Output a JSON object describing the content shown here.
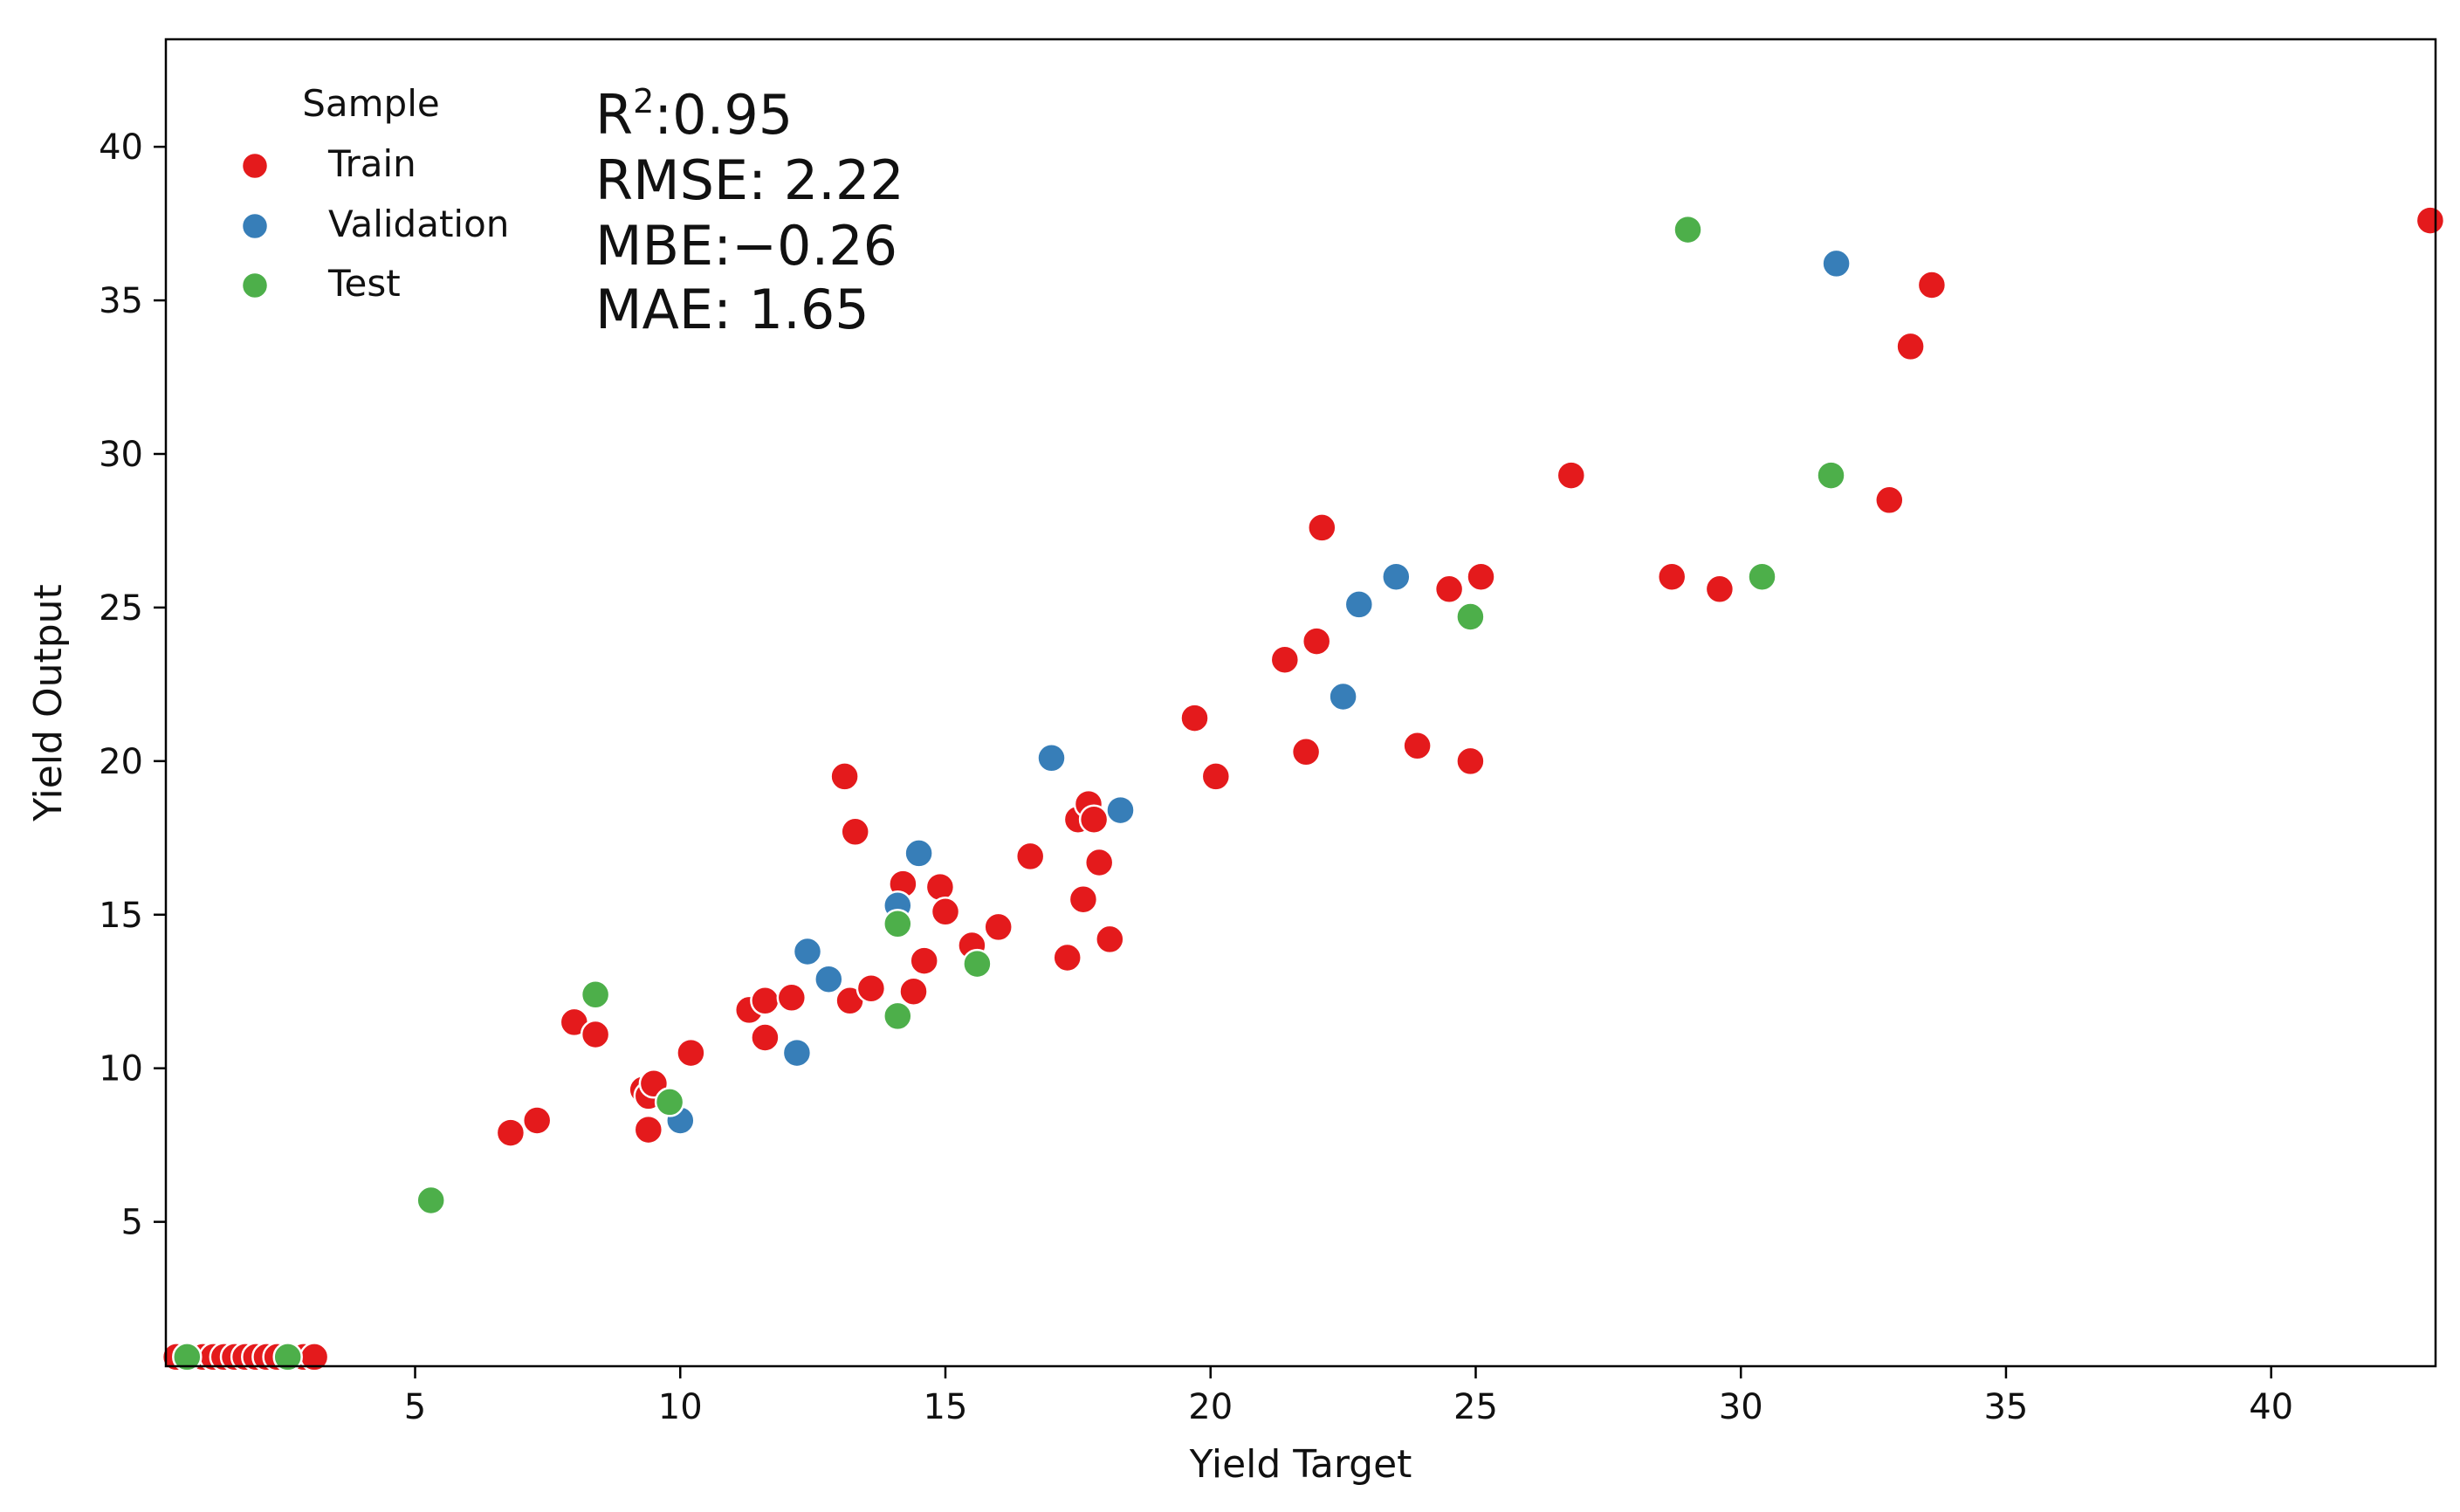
{
  "chart_data": {
    "type": "scatter",
    "xlabel": "Yield Target",
    "ylabel": "Yield Output",
    "xlim": [
      0.3,
      43.1
    ],
    "ylim": [
      0.3,
      43.5
    ],
    "xticks": [
      5,
      10,
      15,
      20,
      25,
      30,
      35,
      40
    ],
    "yticks": [
      5,
      10,
      15,
      20,
      25,
      30,
      35,
      40
    ],
    "grid": false,
    "legend": {
      "title": "Sample",
      "placement": "top-left",
      "entries": [
        "Train",
        "Validation",
        "Test"
      ]
    },
    "annotation_lines": [
      {
        "prefix": "R",
        "sup": "2",
        "suffix": ":0.95"
      },
      {
        "prefix": "RMSE: 2.22",
        "sup": "",
        "suffix": ""
      },
      {
        "prefix": "MBE:−0.26",
        "sup": "",
        "suffix": ""
      },
      {
        "prefix": "MAE: 1.65",
        "sup": "",
        "suffix": ""
      }
    ],
    "series": [
      {
        "name": "Train",
        "color": "#e41a1c",
        "points": [
          [
            0.5,
            0.6
          ],
          [
            0.8,
            0.6
          ],
          [
            1.0,
            0.6
          ],
          [
            1.2,
            0.6
          ],
          [
            1.4,
            0.6
          ],
          [
            1.6,
            0.6
          ],
          [
            1.8,
            0.6
          ],
          [
            2.0,
            0.6
          ],
          [
            2.2,
            0.6
          ],
          [
            2.4,
            0.6
          ],
          [
            2.9,
            0.6
          ],
          [
            3.1,
            0.6
          ],
          [
            6.8,
            7.9
          ],
          [
            7.3,
            8.3
          ],
          [
            8.0,
            11.5
          ],
          [
            8.4,
            11.1
          ],
          [
            9.3,
            9.3
          ],
          [
            9.4,
            9.1
          ],
          [
            9.5,
            9.5
          ],
          [
            9.4,
            8.0
          ],
          [
            10.2,
            10.5
          ],
          [
            11.3,
            11.9
          ],
          [
            11.6,
            11.0
          ],
          [
            11.6,
            12.2
          ],
          [
            12.1,
            12.3
          ],
          [
            13.1,
            19.5
          ],
          [
            13.3,
            17.7
          ],
          [
            13.2,
            12.2
          ],
          [
            13.6,
            12.6
          ],
          [
            14.2,
            16.0
          ],
          [
            14.4,
            12.5
          ],
          [
            14.6,
            13.5
          ],
          [
            14.9,
            15.9
          ],
          [
            15.0,
            15.1
          ],
          [
            15.5,
            14.0
          ],
          [
            16.0,
            14.6
          ],
          [
            16.6,
            16.9
          ],
          [
            17.3,
            13.6
          ],
          [
            17.5,
            18.1
          ],
          [
            17.6,
            15.5
          ],
          [
            17.7,
            18.6
          ],
          [
            17.8,
            18.1
          ],
          [
            17.9,
            16.7
          ],
          [
            18.1,
            14.2
          ],
          [
            19.7,
            21.4
          ],
          [
            20.1,
            19.5
          ],
          [
            21.4,
            23.3
          ],
          [
            21.8,
            20.3
          ],
          [
            22.0,
            23.9
          ],
          [
            22.1,
            27.6
          ],
          [
            23.9,
            20.5
          ],
          [
            24.5,
            25.6
          ],
          [
            24.9,
            20.0
          ],
          [
            25.1,
            26.0
          ],
          [
            26.8,
            29.3
          ],
          [
            28.7,
            26.0
          ],
          [
            29.6,
            25.6
          ],
          [
            32.8,
            28.5
          ],
          [
            33.2,
            33.5
          ],
          [
            33.6,
            35.5
          ],
          [
            43.0,
            37.6
          ]
        ]
      },
      {
        "name": "Validation",
        "color": "#377eb8",
        "points": [
          [
            10.0,
            8.3
          ],
          [
            12.2,
            10.5
          ],
          [
            12.4,
            13.8
          ],
          [
            12.8,
            12.9
          ],
          [
            14.1,
            15.3
          ],
          [
            14.5,
            17.0
          ],
          [
            17.0,
            20.1
          ],
          [
            18.3,
            18.4
          ],
          [
            22.5,
            22.1
          ],
          [
            22.8,
            25.1
          ],
          [
            23.5,
            26.0
          ],
          [
            31.8,
            36.2
          ]
        ]
      },
      {
        "name": "Test",
        "color": "#4daf4a",
        "points": [
          [
            0.7,
            0.6
          ],
          [
            2.6,
            0.6
          ],
          [
            5.3,
            5.7
          ],
          [
            8.4,
            12.4
          ],
          [
            9.8,
            8.9
          ],
          [
            14.1,
            14.7
          ],
          [
            14.1,
            11.7
          ],
          [
            15.6,
            13.4
          ],
          [
            24.9,
            24.7
          ],
          [
            29.0,
            37.3
          ],
          [
            30.4,
            26.0
          ],
          [
            31.7,
            29.3
          ]
        ]
      }
    ]
  }
}
